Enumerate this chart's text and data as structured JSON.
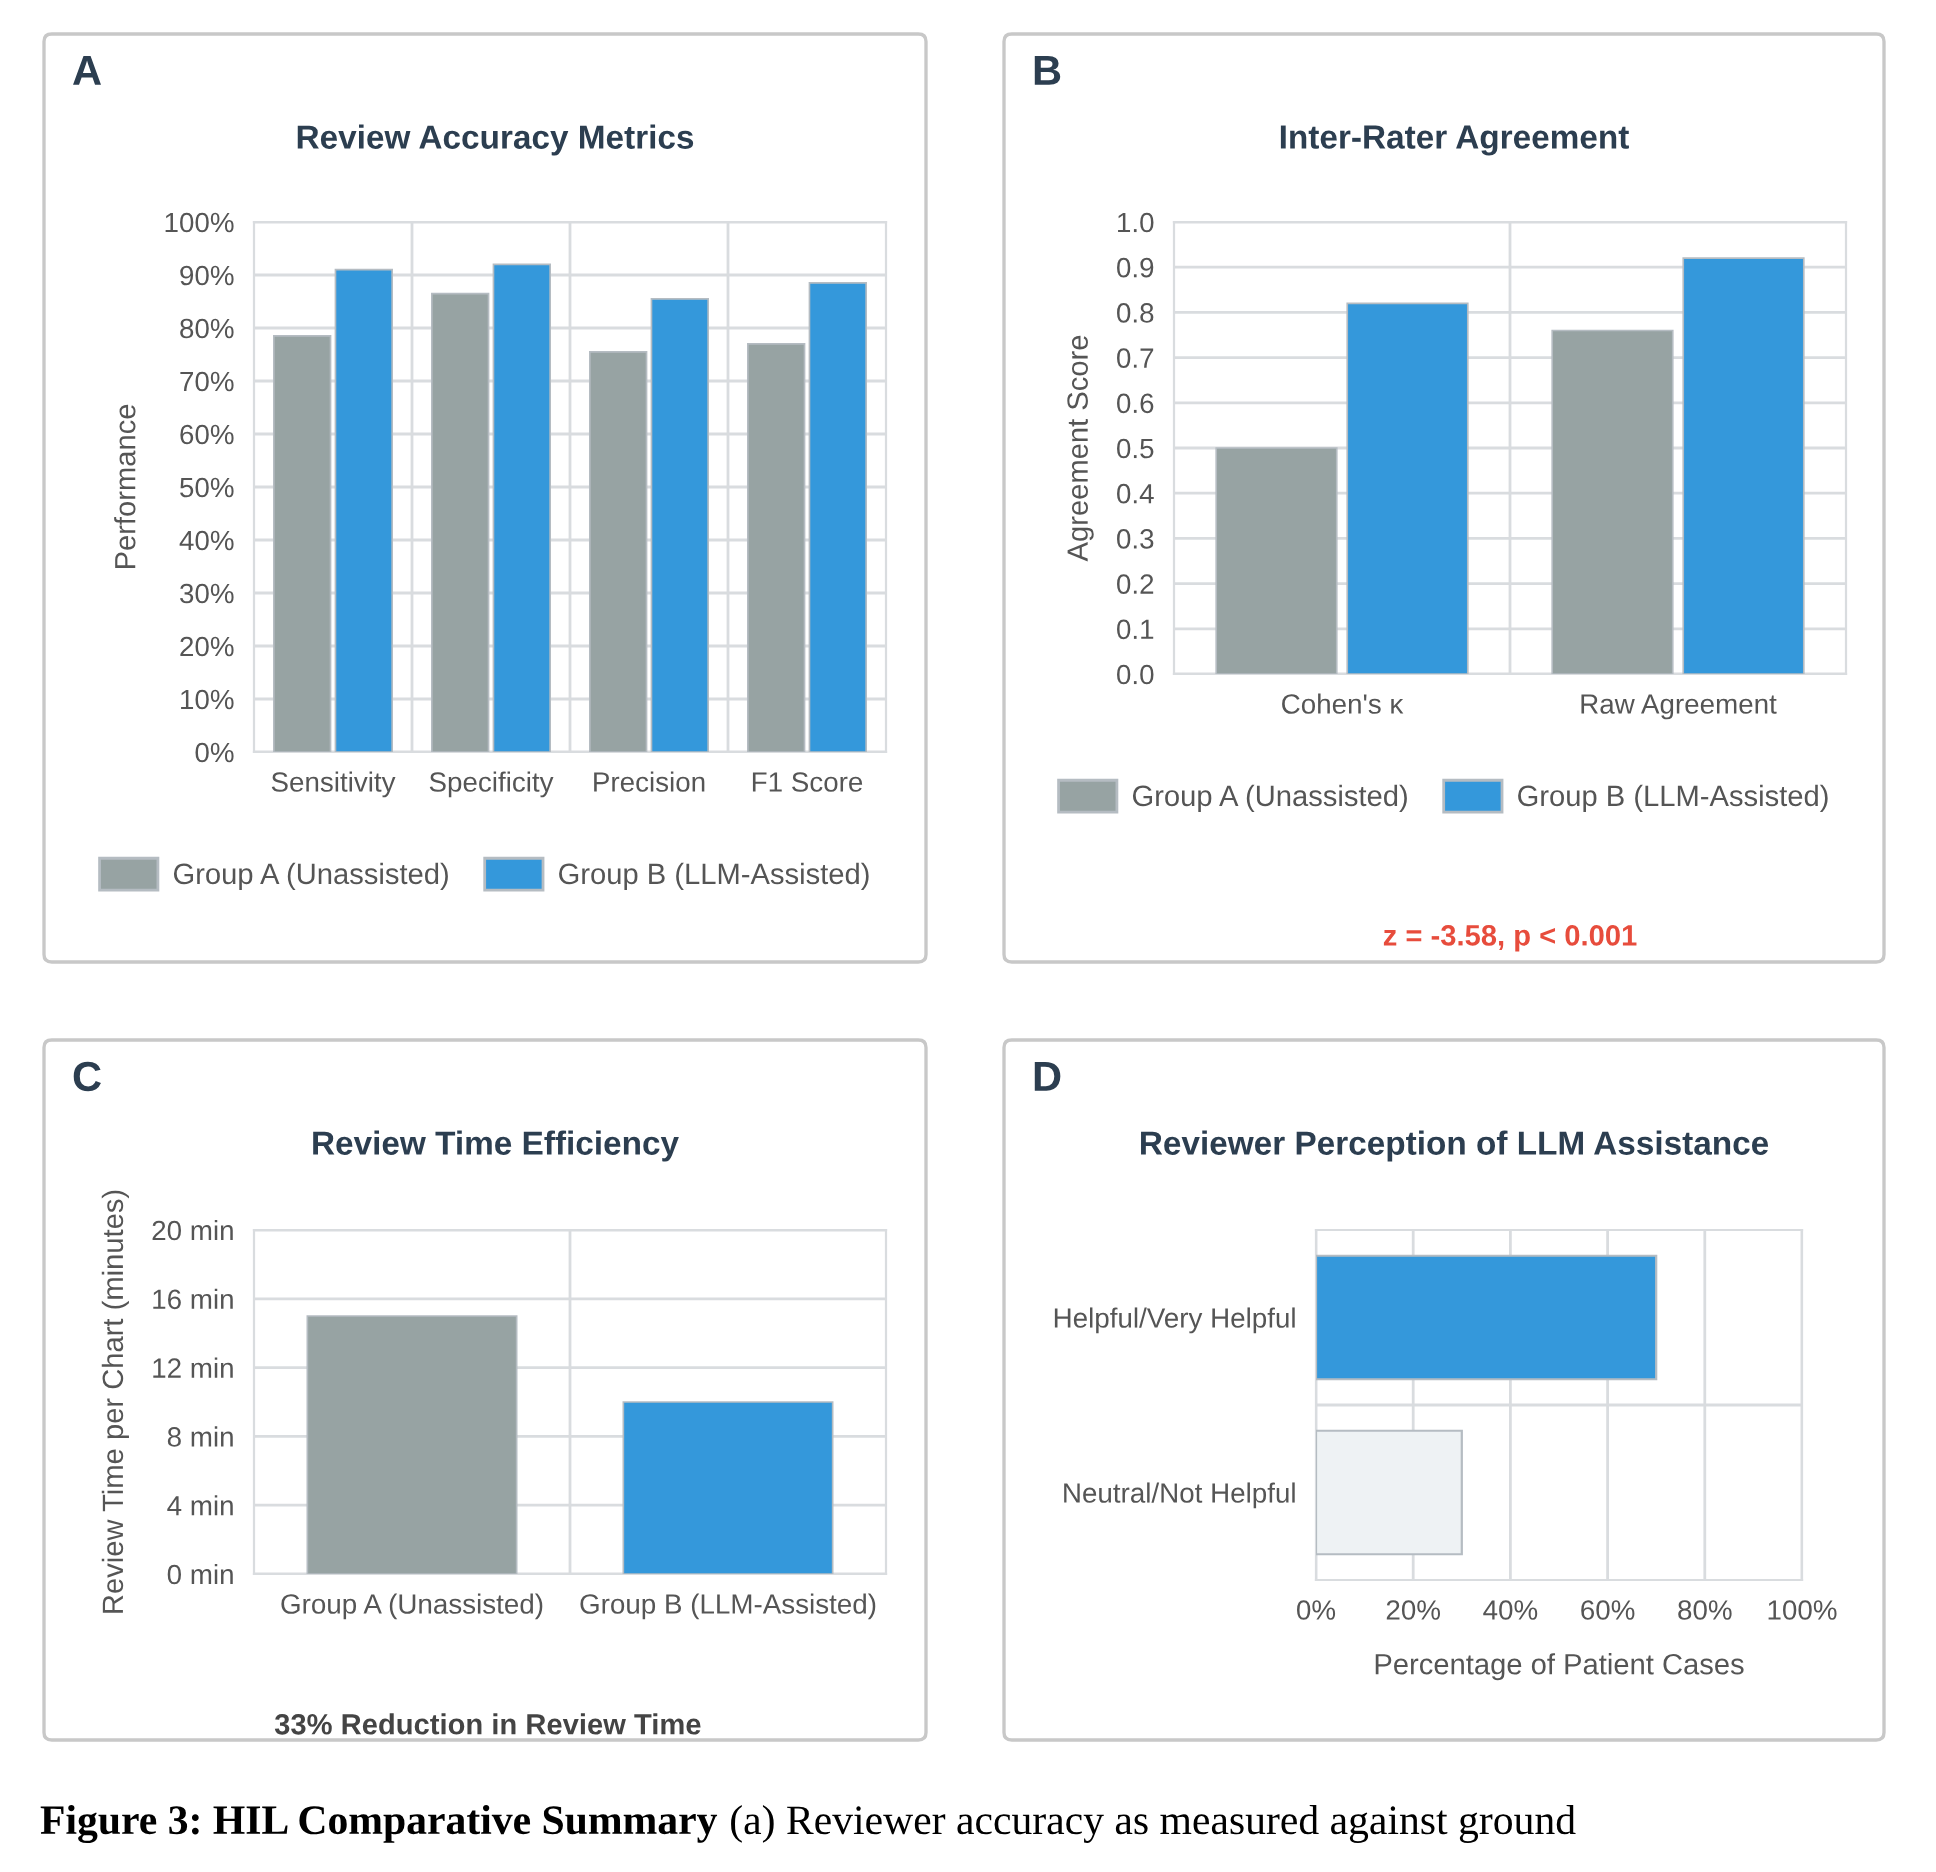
{
  "chart_data": [
    {
      "type": "bar",
      "subtitle": "A",
      "title": "Review Accuracy Metrics",
      "ylabel": "Performance",
      "categories": [
        "Sensitivity",
        "Specificity",
        "Precision",
        "F1 Score"
      ],
      "series": [
        {
          "name": "Group A (Unassisted)",
          "color": "#97a3a3",
          "values": [
            78.5,
            86.5,
            75.5,
            77
          ]
        },
        {
          "name": "Group B (LLM-Assisted)",
          "color": "#3498db",
          "values": [
            91,
            92,
            85.5,
            88.5
          ]
        }
      ],
      "ylim": [
        0,
        100
      ],
      "yticks": [
        {
          "value": 0,
          "label": "0%"
        },
        {
          "value": 10,
          "label": "10%"
        },
        {
          "value": 20,
          "label": "20%"
        },
        {
          "value": 30,
          "label": "30%"
        },
        {
          "value": 40,
          "label": "40%"
        },
        {
          "value": 50,
          "label": "50%"
        },
        {
          "value": 60,
          "label": "60%"
        },
        {
          "value": 70,
          "label": "70%"
        },
        {
          "value": 80,
          "label": "80%"
        },
        {
          "value": 90,
          "label": "90%"
        },
        {
          "value": 100,
          "label": "100%"
        }
      ],
      "grid": "y",
      "legend": "bottom"
    },
    {
      "type": "bar",
      "subtitle": "B",
      "title": "Inter-Rater Agreement",
      "ylabel": "Agreement Score",
      "categories": [
        "Cohen's κ",
        "Raw Agreement"
      ],
      "series": [
        {
          "name": "Group A (Unassisted)",
          "color": "#97a3a3",
          "values": [
            0.5,
            0.76
          ]
        },
        {
          "name": "Group B (LLM-Assisted)",
          "color": "#3498db",
          "values": [
            0.82,
            0.92
          ]
        }
      ],
      "ylim": [
        0,
        1
      ],
      "yticks": [
        {
          "value": 0,
          "label": "0.0"
        },
        {
          "value": 0.1,
          "label": "0.1"
        },
        {
          "value": 0.2,
          "label": "0.2"
        },
        {
          "value": 0.3,
          "label": "0.3"
        },
        {
          "value": 0.4,
          "label": "0.4"
        },
        {
          "value": 0.5,
          "label": "0.5"
        },
        {
          "value": 0.6,
          "label": "0.6"
        },
        {
          "value": 0.7,
          "label": "0.7"
        },
        {
          "value": 0.8,
          "label": "0.8"
        },
        {
          "value": 0.9,
          "label": "0.9"
        },
        {
          "value": 1,
          "label": "1.0"
        }
      ],
      "grid": "y",
      "legend": "bottom",
      "annotations": [
        "z = -3.58, p < 0.001"
      ]
    },
    {
      "type": "bar",
      "subtitle": "C",
      "title": "Review Time Efficiency",
      "ylabel": "Review Time per Chart (minutes)",
      "categories": [
        "Group A (Unassisted)",
        "Group B (LLM-Assisted)"
      ],
      "values": [
        15,
        10
      ],
      "colors": [
        "#97a3a3",
        "#3498db"
      ],
      "ylim": [
        0,
        20
      ],
      "yticks": [
        {
          "value": 0,
          "label": "0 min"
        },
        {
          "value": 4,
          "label": "4 min"
        },
        {
          "value": 8,
          "label": "8 min"
        },
        {
          "value": 12,
          "label": "12 min"
        },
        {
          "value": 16,
          "label": "16 min"
        },
        {
          "value": 20,
          "label": "20 min"
        }
      ],
      "grid": "y",
      "annotations": [
        "33% Reduction in Review Time"
      ]
    },
    {
      "type": "bar",
      "orientation": "horizontal",
      "subtitle": "D",
      "title": "Reviewer Perception of LLM Assistance",
      "xlabel": "Percentage of Patient Cases",
      "categories": [
        "Helpful/Very Helpful",
        "Neutral/Not Helpful"
      ],
      "values": [
        70,
        30
      ],
      "colors": [
        "#3498db",
        "#eef2f4"
      ],
      "xlim": [
        0,
        100
      ],
      "xticks": [
        {
          "value": 0,
          "label": "0%"
        },
        {
          "value": 20,
          "label": "20%"
        },
        {
          "value": 40,
          "label": "40%"
        },
        {
          "value": 60,
          "label": "60%"
        },
        {
          "value": 80,
          "label": "80%"
        },
        {
          "value": 100,
          "label": "100%"
        }
      ],
      "grid": "x"
    },
    {
      "type": "other",
      "annotations": [
        "Figure 3: HIL Comparative Summary",
        "(a) Reviewer accuracy as measured against ground"
      ]
    }
  ]
}
